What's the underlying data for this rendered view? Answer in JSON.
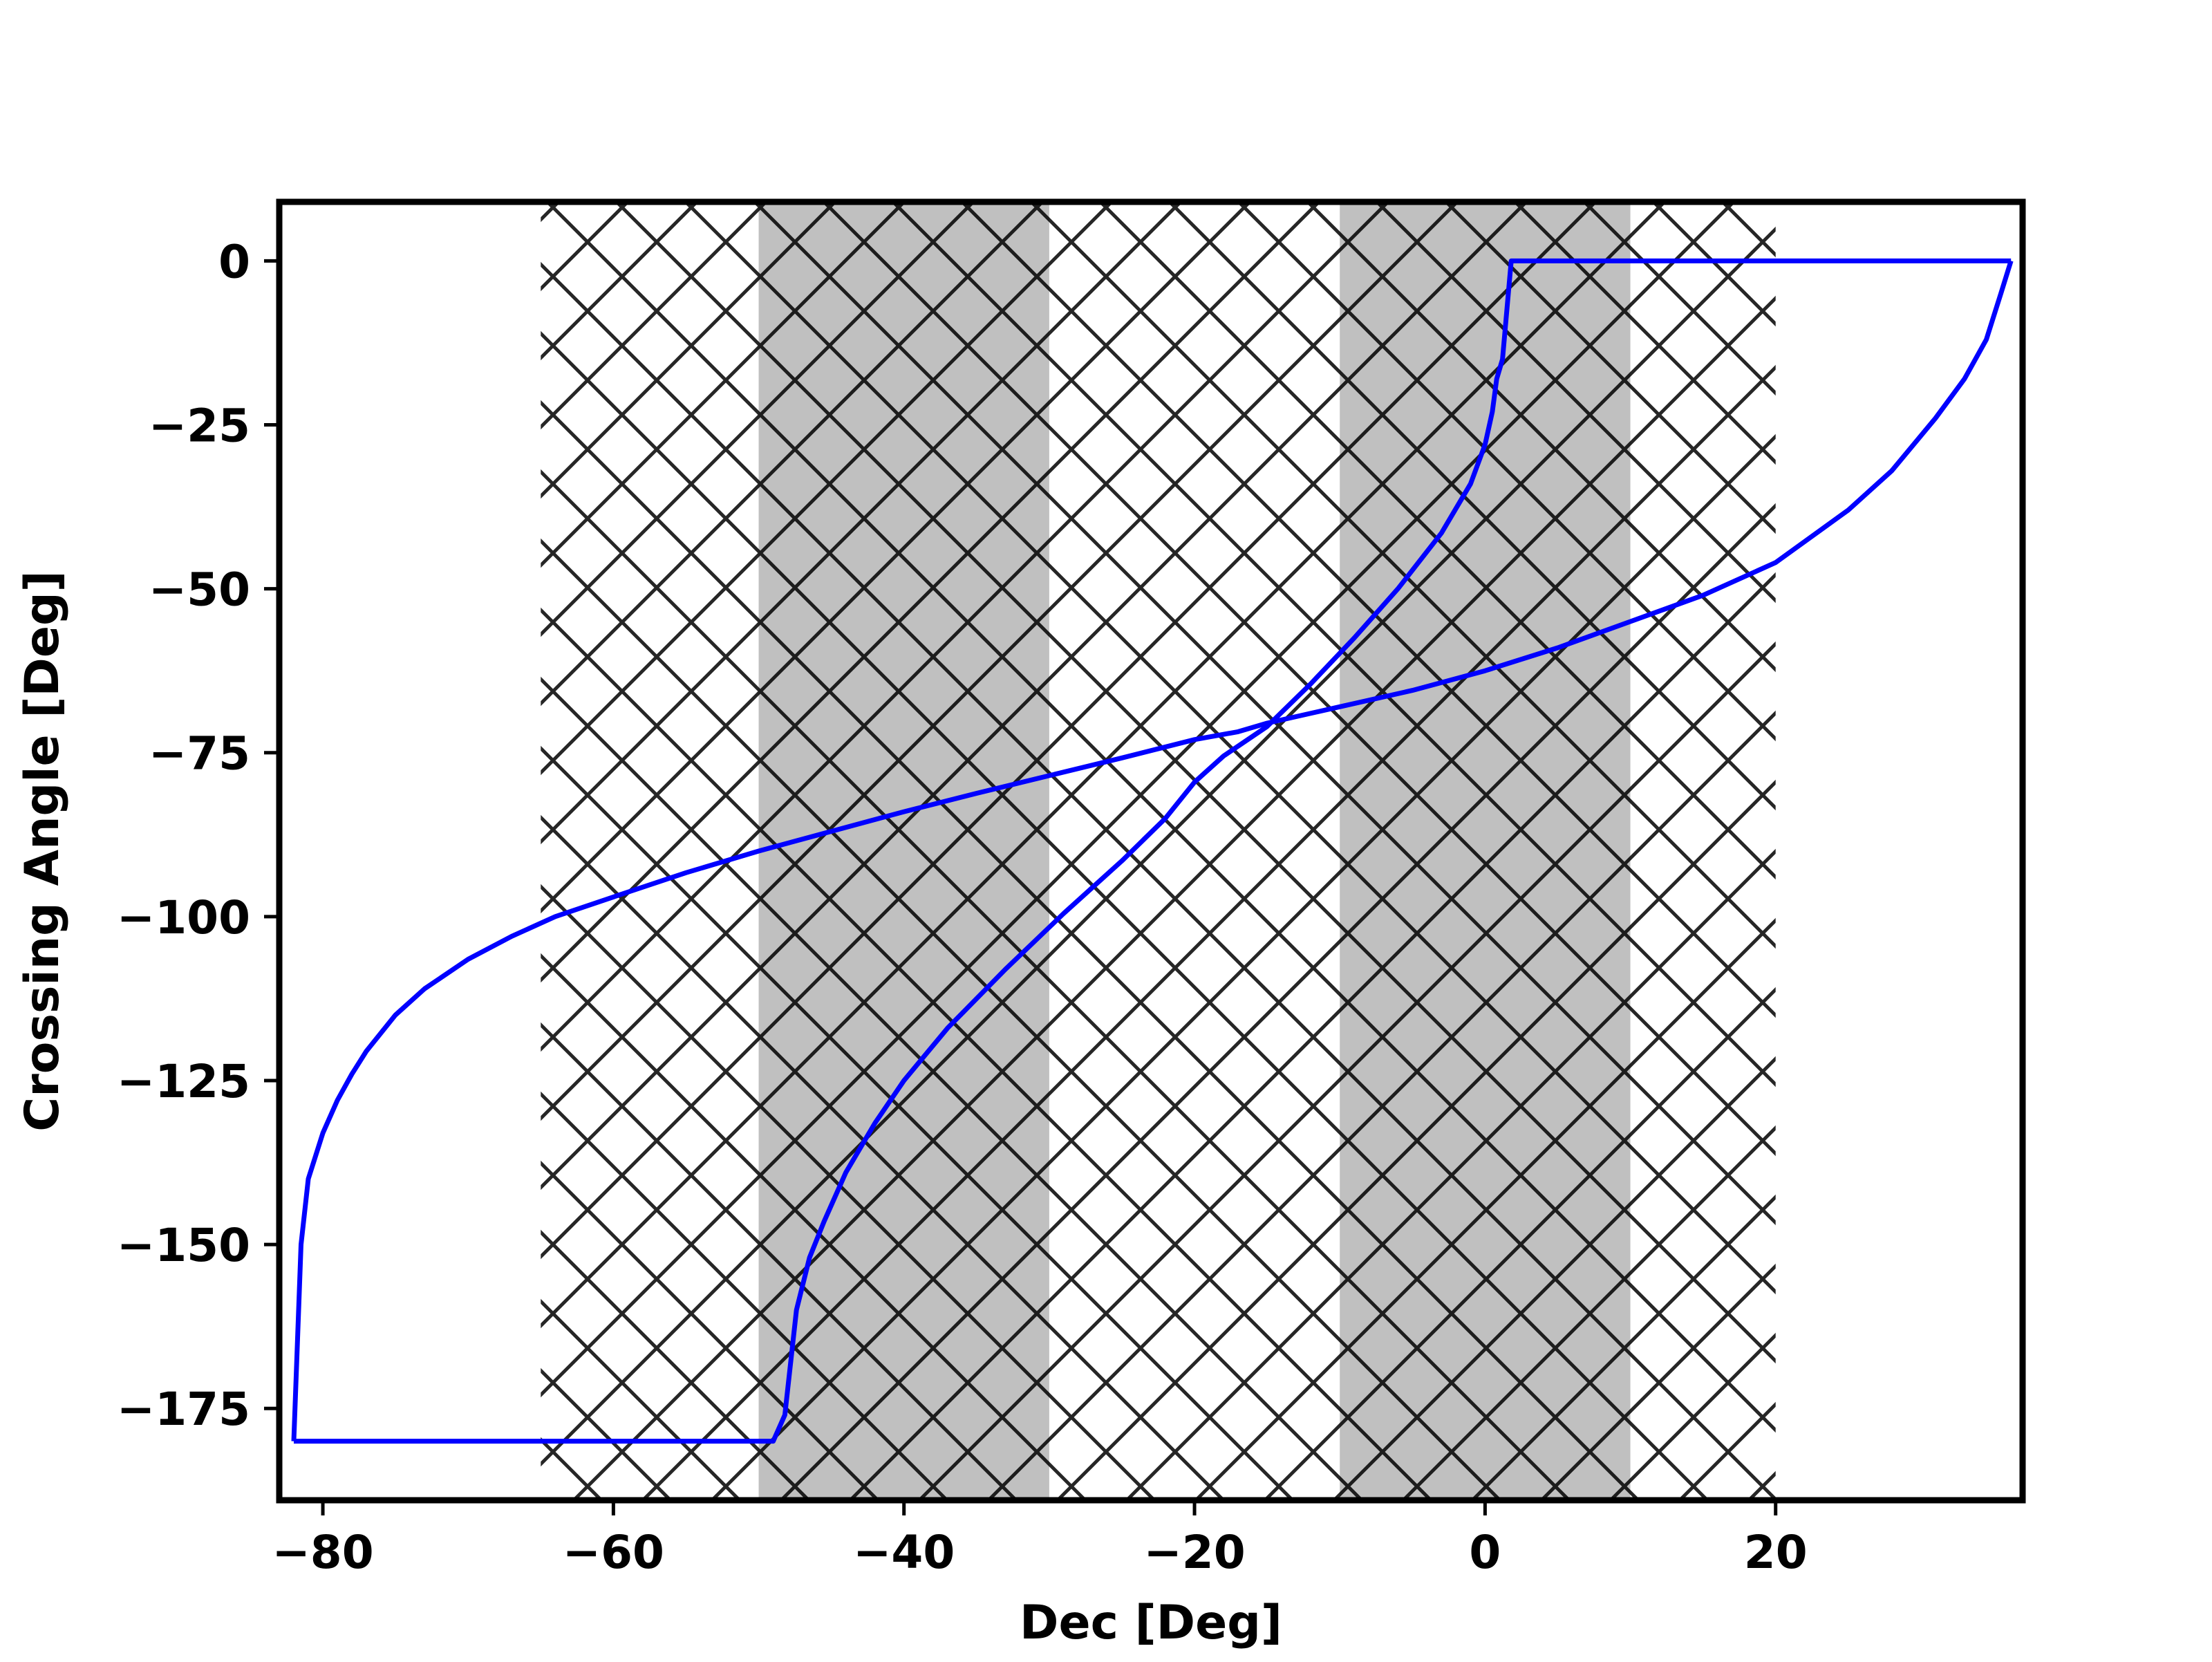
{
  "chart_data": {
    "type": "line",
    "title": "",
    "xlabel": "Dec [Deg]",
    "ylabel": "Crossing Angle [Deg]",
    "xlim": [
      -83,
      37
    ],
    "ylim": [
      -189,
      9
    ],
    "xticks": [
      -80,
      -60,
      -40,
      -20,
      0,
      20
    ],
    "xtick_labels": [
      "−80",
      "−60",
      "−40",
      "−20",
      "0",
      "20"
    ],
    "yticks": [
      0,
      -25,
      -50,
      -75,
      -100,
      -125,
      -150,
      -175
    ],
    "ytick_labels": [
      "0",
      "−25",
      "−50",
      "−75",
      "−100",
      "−125",
      "−150",
      "−175"
    ],
    "grid": false,
    "legend": "none",
    "line_color": "#0000ff",
    "shaded_bands": [
      {
        "x_range": [
          -50,
          -30
        ],
        "color": "#c0c0c0"
      },
      {
        "x_range": [
          -10,
          10
        ],
        "color": "#c0c0c0"
      }
    ],
    "hatched_region": {
      "x_range": [
        -65,
        20
      ],
      "pattern": "crosshatch",
      "color": "#000000"
    },
    "series": [
      {
        "x": [
          -82,
          -81.5,
          -81,
          -80,
          -79,
          -78,
          -77,
          -75,
          -73,
          -70,
          -67,
          -64,
          -60,
          -55,
          -50,
          -45,
          -40,
          -35,
          -30,
          -25,
          -20,
          -17,
          -15,
          -10,
          -5,
          0,
          5,
          10,
          15,
          20,
          25,
          28,
          31,
          33,
          34.5,
          35.5,
          36.2
        ],
        "y": [
          -180,
          -150,
          -140,
          -133,
          -128,
          -124,
          -120.5,
          -115,
          -111,
          -106.5,
          -103,
          -100,
          -97,
          -93.3,
          -90,
          -87,
          -84,
          -81.2,
          -78.5,
          -75.8,
          -73,
          -71.8,
          -70.5,
          -68,
          -65.5,
          -62.5,
          -59,
          -55,
          -51,
          -46,
          -38,
          -32,
          -24,
          -18,
          -12,
          -5,
          0
        ]
      },
      {
        "x": [
          -82,
          -49,
          -48.2,
          -47.4,
          -46.5,
          -45.5,
          -44,
          -42,
          -40,
          -37,
          -33,
          -29,
          -25,
          -22,
          -20,
          -18,
          -15,
          -12,
          -9,
          -6,
          -3,
          -1,
          0,
          0.5,
          0.8,
          1.2,
          1.8,
          36.2
        ],
        "y": [
          -180,
          -180,
          -176,
          -160,
          -152,
          -146.5,
          -139,
          -131.5,
          -125,
          -117,
          -108,
          -99.5,
          -91.5,
          -85,
          -79.5,
          -75.5,
          -71,
          -64.5,
          -57.5,
          -50,
          -41.5,
          -34,
          -28,
          -23,
          -18,
          -15,
          0,
          0
        ]
      }
    ]
  }
}
